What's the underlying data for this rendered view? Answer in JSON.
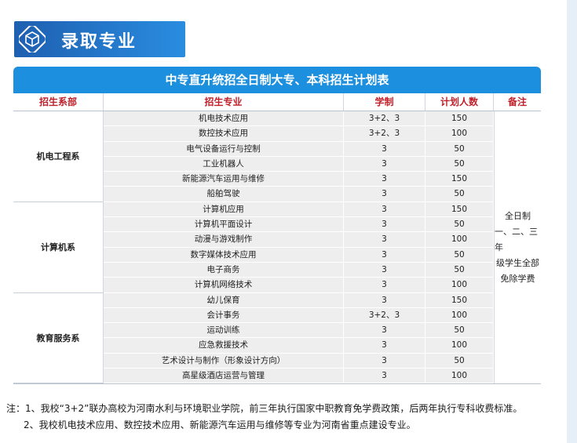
{
  "header": {
    "title": "录取专业",
    "icon": "cube-icon",
    "accent": "#1e5fb0"
  },
  "table": {
    "title": "中专直升统招全日制大专、本科招生计划表",
    "columns": [
      "招生系部",
      "招生专业",
      "学制",
      "计划人数",
      "备注"
    ],
    "departments": [
      {
        "name": "机电工程系",
        "rows": [
          {
            "major": "机电技术应用",
            "duration": "3+2、3",
            "quota": "150"
          },
          {
            "major": "数控技术应用",
            "duration": "3+2、3",
            "quota": "100"
          },
          {
            "major": "电气设备运行与控制",
            "duration": "3",
            "quota": "50"
          },
          {
            "major": "工业机器人",
            "duration": "3",
            "quota": "50"
          },
          {
            "major": "新能源汽车运用与维修",
            "duration": "3",
            "quota": "150"
          },
          {
            "major": "船舶驾驶",
            "duration": "3",
            "quota": "50"
          }
        ]
      },
      {
        "name": "计算机系",
        "rows": [
          {
            "major": "计算机应用",
            "duration": "3",
            "quota": "150"
          },
          {
            "major": "计算机平面设计",
            "duration": "3",
            "quota": "50"
          },
          {
            "major": "动漫与游戏制作",
            "duration": "3",
            "quota": "100"
          },
          {
            "major": "数字媒体技术应用",
            "duration": "3",
            "quota": "50"
          },
          {
            "major": "电子商务",
            "duration": "3",
            "quota": "50"
          },
          {
            "major": "计算机网络技术",
            "duration": "3",
            "quota": "100"
          }
        ]
      },
      {
        "name": "教育服务系",
        "rows": [
          {
            "major": "幼儿保育",
            "duration": "3",
            "quota": "150"
          },
          {
            "major": "会计事务",
            "duration": "3+2、3",
            "quota": "100"
          },
          {
            "major": "运动训练",
            "duration": "3",
            "quota": "50"
          },
          {
            "major": "应急救援技术",
            "duration": "3",
            "quota": "100"
          },
          {
            "major": "艺术设计与制作（形象设计方向）",
            "duration": "3",
            "quota": "50"
          },
          {
            "major": "高星级酒店运营与管理",
            "duration": "3",
            "quota": "100"
          }
        ]
      }
    ],
    "remark_lines": [
      "全日制",
      "一、二、三年",
      "级学生全部",
      "免除学费"
    ]
  },
  "notes": {
    "line1": "注：1、我校“3+2”联办高校为河南水利与环境职业学院，前三年执行国家中职教育免学费政策，后两年执行专科收费标准。",
    "line2": "2、我校机电技术应用、数控技术应用、新能源汽车运用与维修等专业为河南省重点建设专业。"
  }
}
